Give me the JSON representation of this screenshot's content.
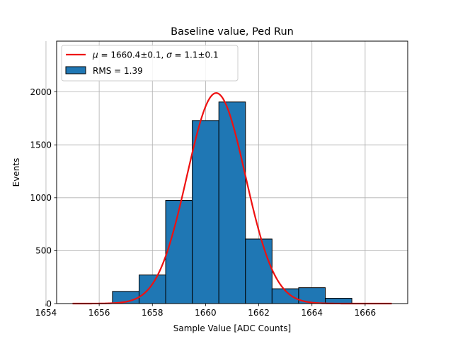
{
  "chart_data": {
    "type": "bar",
    "title": "Baseline value, Ped Run",
    "xlabel": "Sample Value [ADC Counts]",
    "ylabel": "Events",
    "xlim": [
      1654.4,
      1667.6
    ],
    "ylim": [
      0,
      2480
    ],
    "xticks": [
      1654,
      1656,
      1658,
      1660,
      1662,
      1664,
      1666
    ],
    "yticks": [
      0,
      500,
      1000,
      1500,
      2000
    ],
    "grid": true,
    "legend_placement": "top-left",
    "histogram": {
      "name": "RMS = 1.39",
      "color": "#1f77b4",
      "edge_color": "#000000",
      "bins": [
        {
          "x0": 1656.5,
          "x1": 1657.5,
          "count": 115
        },
        {
          "x0": 1657.5,
          "x1": 1658.5,
          "count": 270
        },
        {
          "x0": 1658.5,
          "x1": 1659.5,
          "count": 975
        },
        {
          "x0": 1659.5,
          "x1": 1660.5,
          "count": 1730
        },
        {
          "x0": 1660.5,
          "x1": 1661.5,
          "count": 1905
        },
        {
          "x0": 1661.5,
          "x1": 1662.5,
          "count": 610
        },
        {
          "x0": 1662.5,
          "x1": 1663.5,
          "count": 140
        },
        {
          "x0": 1663.5,
          "x1": 1664.5,
          "count": 150
        },
        {
          "x0": 1664.5,
          "x1": 1665.5,
          "count": 50
        }
      ]
    },
    "fit": {
      "name": "$\\mu = 1660.4\\pm0.1$, $\\sigma = 1.1\\pm0.1$",
      "color": "#ee1111",
      "type": "gaussian",
      "amplitude": 1990,
      "mu": 1660.4,
      "sigma": 1.1,
      "x_range": [
        1655,
        1667
      ]
    },
    "legend": {
      "fit_label": {
        "mu_symbol": "μ",
        "mu_text": " = 1660.4±0.1, ",
        "sigma_symbol": "σ",
        "sigma_text": " = 1.1±0.1"
      },
      "hist_label": "RMS = 1.39"
    }
  }
}
